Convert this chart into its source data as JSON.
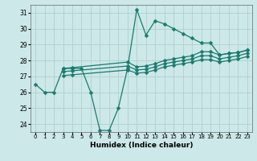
{
  "xlabel": "Humidex (Indice chaleur)",
  "xlim": [
    -0.5,
    23.5
  ],
  "ylim": [
    23.5,
    31.5
  ],
  "yticks": [
    24,
    25,
    26,
    27,
    28,
    29,
    30,
    31
  ],
  "xticks": [
    0,
    1,
    2,
    3,
    4,
    5,
    6,
    7,
    8,
    9,
    10,
    11,
    12,
    13,
    14,
    15,
    16,
    17,
    18,
    19,
    20,
    21,
    22,
    23
  ],
  "bg_color": "#cce8e8",
  "line_color": "#1a7a6e",
  "grid_color": "#b0d0d0",
  "main_line": {
    "x": [
      0,
      1,
      2,
      3,
      4,
      5,
      6,
      7,
      8,
      9,
      10,
      11,
      12,
      13,
      14,
      15,
      16,
      17,
      18,
      19,
      20,
      21,
      22,
      23
    ],
    "y": [
      26.5,
      26.0,
      26.0,
      27.5,
      27.5,
      27.5,
      26.0,
      23.6,
      23.6,
      25.0,
      27.5,
      31.2,
      29.6,
      30.5,
      30.3,
      30.0,
      29.7,
      29.4,
      29.1,
      29.1,
      28.35,
      28.45,
      28.5,
      28.65
    ]
  },
  "line2": {
    "x": [
      3,
      4,
      10,
      11,
      12,
      13,
      14,
      15,
      16,
      17,
      18,
      19,
      20,
      21,
      22,
      23
    ],
    "y": [
      27.5,
      27.55,
      27.9,
      27.6,
      27.65,
      27.8,
      28.0,
      28.1,
      28.2,
      28.3,
      28.55,
      28.55,
      28.35,
      28.45,
      28.5,
      28.65
    ]
  },
  "line3": {
    "x": [
      3,
      4,
      10,
      11,
      12,
      13,
      14,
      15,
      16,
      17,
      18,
      19,
      20,
      21,
      22,
      23
    ],
    "y": [
      27.3,
      27.35,
      27.65,
      27.4,
      27.45,
      27.6,
      27.8,
      27.9,
      28.0,
      28.1,
      28.3,
      28.3,
      28.1,
      28.2,
      28.3,
      28.45
    ]
  },
  "line4": {
    "x": [
      3,
      4,
      10,
      11,
      12,
      13,
      14,
      15,
      16,
      17,
      18,
      19,
      20,
      21,
      22,
      23
    ],
    "y": [
      27.05,
      27.1,
      27.4,
      27.2,
      27.25,
      27.4,
      27.6,
      27.7,
      27.8,
      27.9,
      28.05,
      28.05,
      27.9,
      28.0,
      28.1,
      28.25
    ]
  }
}
